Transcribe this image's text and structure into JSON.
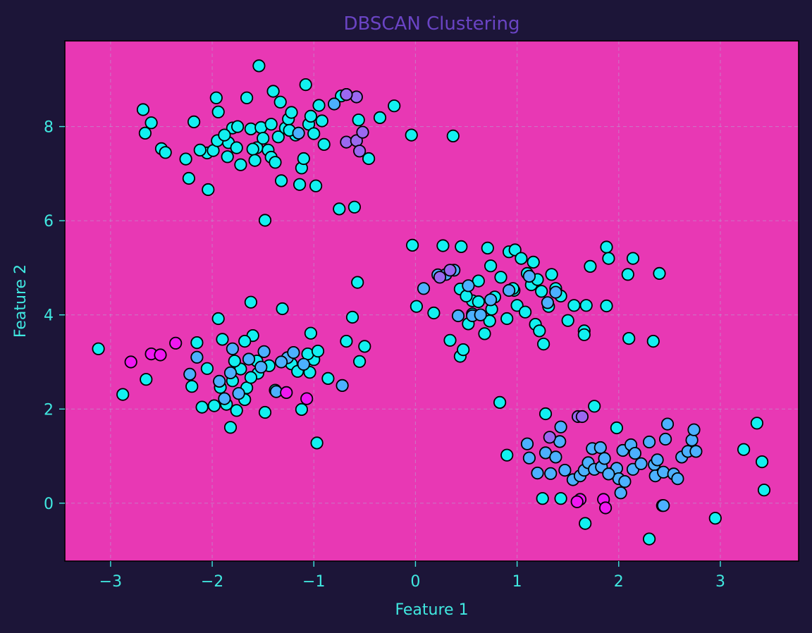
{
  "chart_data": {
    "type": "scatter",
    "title": "DBSCAN Clustering",
    "xlabel": "Feature 1",
    "ylabel": "Feature 2",
    "xlim": [
      -3.45,
      3.77
    ],
    "ylim": [
      -1.23,
      9.82
    ],
    "xticks": [
      -3,
      -2,
      -1,
      0,
      1,
      2,
      3
    ],
    "yticks": [
      0,
      2,
      4,
      6,
      8
    ],
    "grid": true,
    "legend": "none",
    "colors": {
      "background": "#1c1538",
      "plot_area": "#e838b4",
      "text": "#40e8e0",
      "title": "#6a44c4",
      "grid": "#b8a0d0",
      "marker_edge": "#000000"
    },
    "series": [
      {
        "color": "#12f0f0",
        "points": [
          [
            -3.12,
            3.28
          ],
          [
            -2.88,
            2.31
          ],
          [
            -2.65,
            2.63
          ],
          [
            -2.2,
            2.48
          ],
          [
            -2.15,
            3.41
          ],
          [
            -1.94,
            3.92
          ],
          [
            -1.62,
            4.27
          ],
          [
            -1.6,
            3.56
          ],
          [
            -1.31,
            4.13
          ],
          [
            -1.03,
            3.61
          ],
          [
            -1.0,
            3.05
          ],
          [
            -0.97,
            1.28
          ],
          [
            -0.86,
            2.65
          ],
          [
            -0.68,
            3.44
          ],
          [
            -0.62,
            3.95
          ],
          [
            -0.57,
            4.69
          ],
          [
            -0.55,
            3.01
          ],
          [
            -0.5,
            3.33
          ],
          [
            -1.12,
            1.99
          ],
          [
            -1.38,
            2.4
          ],
          [
            -1.48,
            1.93
          ],
          [
            -1.82,
            1.61
          ],
          [
            -1.76,
            1.97
          ],
          [
            -2.1,
            2.04
          ],
          [
            -1.98,
            2.07
          ],
          [
            -1.86,
            2.1
          ],
          [
            -1.68,
            2.2
          ],
          [
            -1.92,
            2.46
          ],
          [
            -1.66,
            2.45
          ],
          [
            -1.8,
            2.6
          ],
          [
            -1.72,
            2.85
          ],
          [
            -1.55,
            2.76
          ],
          [
            -1.44,
            2.92
          ],
          [
            -1.9,
            3.48
          ],
          [
            -1.56,
            3.02
          ],
          [
            -1.22,
            2.96
          ],
          [
            -1.04,
            2.78
          ],
          [
            -1.06,
            3.17
          ],
          [
            -0.96,
            3.23
          ],
          [
            -1.16,
            2.8
          ],
          [
            -1.62,
            2.67
          ],
          [
            -2.05,
            2.86
          ],
          [
            -1.78,
            3.02
          ],
          [
            -1.68,
            3.44
          ],
          [
            -2.68,
            8.36
          ],
          [
            -2.66,
            7.86
          ],
          [
            -2.6,
            8.08
          ],
          [
            -2.5,
            7.53
          ],
          [
            -2.46,
            7.45
          ],
          [
            -2.26,
            7.31
          ],
          [
            -2.23,
            6.9
          ],
          [
            -2.18,
            8.1
          ],
          [
            -2.05,
            7.44
          ],
          [
            -2.04,
            6.66
          ],
          [
            -1.99,
            7.49
          ],
          [
            -1.96,
            8.61
          ],
          [
            -1.94,
            8.31
          ],
          [
            -1.84,
            7.66
          ],
          [
            -1.8,
            7.97
          ],
          [
            -1.76,
            7.55
          ],
          [
            -1.72,
            7.19
          ],
          [
            -1.66,
            8.61
          ],
          [
            -1.62,
            7.95
          ],
          [
            -1.56,
            7.55
          ],
          [
            -1.54,
            9.29
          ],
          [
            -1.52,
            7.98
          ],
          [
            -1.5,
            7.75
          ],
          [
            -1.48,
            6.01
          ],
          [
            -1.45,
            7.5
          ],
          [
            -1.42,
            7.35
          ],
          [
            -1.4,
            8.75
          ],
          [
            -1.38,
            7.24
          ],
          [
            -1.35,
            7.78
          ],
          [
            -1.33,
            8.52
          ],
          [
            -1.32,
            6.85
          ],
          [
            -1.28,
            7.97
          ],
          [
            -1.25,
            8.16
          ],
          [
            -1.22,
            8.3
          ],
          [
            -1.18,
            7.82
          ],
          [
            -1.14,
            6.77
          ],
          [
            -1.12,
            7.12
          ],
          [
            -1.1,
            7.32
          ],
          [
            -1.08,
            8.89
          ],
          [
            -1.05,
            8.05
          ],
          [
            -1.03,
            8.22
          ],
          [
            -1.0,
            7.85
          ],
          [
            -0.98,
            6.74
          ],
          [
            -0.95,
            8.45
          ],
          [
            -0.92,
            8.12
          ],
          [
            -0.9,
            7.62
          ],
          [
            -0.75,
            6.25
          ],
          [
            -0.6,
            6.29
          ],
          [
            -0.56,
            8.14
          ],
          [
            -0.46,
            7.32
          ],
          [
            -0.35,
            8.19
          ],
          [
            -0.21,
            8.44
          ],
          [
            -0.04,
            7.82
          ],
          [
            0.37,
            7.8
          ],
          [
            -0.73,
            8.65
          ],
          [
            -1.6,
            7.52
          ],
          [
            -1.85,
            7.36
          ],
          [
            -1.95,
            7.7
          ],
          [
            -2.12,
            7.5
          ],
          [
            -1.75,
            8.0
          ],
          [
            -1.88,
            7.82
          ],
          [
            -1.58,
            7.28
          ],
          [
            -1.42,
            8.05
          ],
          [
            -1.24,
            7.92
          ],
          [
            -0.03,
            5.48
          ],
          [
            0.01,
            4.18
          ],
          [
            0.18,
            4.04
          ],
          [
            0.27,
            5.47
          ],
          [
            0.34,
            3.46
          ],
          [
            0.44,
            3.12
          ],
          [
            0.45,
            5.45
          ],
          [
            0.47,
            3.26
          ],
          [
            0.52,
            3.81
          ],
          [
            0.56,
            4.3
          ],
          [
            0.62,
            4.72
          ],
          [
            0.68,
            3.6
          ],
          [
            0.71,
            5.42
          ],
          [
            0.73,
            3.87
          ],
          [
            0.74,
            5.04
          ],
          [
            0.75,
            4.12
          ],
          [
            0.78,
            4.38
          ],
          [
            0.84,
            4.8
          ],
          [
            0.9,
            3.92
          ],
          [
            0.92,
            5.34
          ],
          [
            0.97,
            4.52
          ],
          [
            0.98,
            5.38
          ],
          [
            1.0,
            4.2
          ],
          [
            1.04,
            5.2
          ],
          [
            1.08,
            4.06
          ],
          [
            1.1,
            4.88
          ],
          [
            1.14,
            4.64
          ],
          [
            1.16,
            5.12
          ],
          [
            1.18,
            3.8
          ],
          [
            1.2,
            4.75
          ],
          [
            1.22,
            3.66
          ],
          [
            1.24,
            4.5
          ],
          [
            1.26,
            3.38
          ],
          [
            1.31,
            4.18
          ],
          [
            1.34,
            4.86
          ],
          [
            1.38,
            4.56
          ],
          [
            1.43,
            4.4
          ],
          [
            1.5,
            3.88
          ],
          [
            1.56,
            4.2
          ],
          [
            1.66,
            3.66
          ],
          [
            1.68,
            4.2
          ],
          [
            1.72,
            5.03
          ],
          [
            1.88,
            5.44
          ],
          [
            1.9,
            5.2
          ],
          [
            1.88,
            4.19
          ],
          [
            2.09,
            4.86
          ],
          [
            2.1,
            3.5
          ],
          [
            2.14,
            5.2
          ],
          [
            2.34,
            3.44
          ],
          [
            2.4,
            4.88
          ],
          [
            0.44,
            4.55
          ],
          [
            0.56,
            4.02
          ],
          [
            0.62,
            4.28
          ],
          [
            0.5,
            4.4
          ],
          [
            0.96,
            4.56
          ],
          [
            0.83,
            2.14
          ],
          [
            1.66,
            3.58
          ],
          [
            0.9,
            1.02
          ],
          [
            1.28,
            1.9
          ],
          [
            1.43,
            0.1
          ],
          [
            1.67,
            -0.43
          ],
          [
            1.76,
            2.06
          ],
          [
            1.98,
            1.6
          ],
          [
            2.3,
            -0.76
          ],
          [
            2.43,
            -0.05
          ],
          [
            2.95,
            -0.32
          ],
          [
            3.23,
            1.14
          ],
          [
            3.36,
            1.7
          ],
          [
            3.41,
            0.88
          ],
          [
            3.43,
            0.28
          ],
          [
            1.25,
            0.1
          ]
        ]
      },
      {
        "color": "#4cb0ff",
        "points": [
          [
            -2.15,
            3.1
          ],
          [
            -1.93,
            2.59
          ],
          [
            -1.8,
            3.28
          ],
          [
            -1.82,
            2.77
          ],
          [
            -1.49,
            3.22
          ],
          [
            -1.37,
            2.37
          ],
          [
            -1.26,
            3.09
          ],
          [
            -1.1,
            2.95
          ],
          [
            -0.72,
            2.5
          ],
          [
            -1.64,
            3.06
          ],
          [
            -1.52,
            2.89
          ],
          [
            -1.2,
            3.2
          ],
          [
            -1.88,
            2.22
          ],
          [
            -2.22,
            2.74
          ],
          [
            -1.74,
            2.33
          ],
          [
            -1.32,
            3.0
          ],
          [
            -0.68,
            8.68
          ],
          [
            -0.8,
            8.48
          ],
          [
            -1.15,
            7.86
          ],
          [
            0.22,
            4.85
          ],
          [
            0.3,
            4.86
          ],
          [
            0.38,
            4.95
          ],
          [
            0.56,
            3.98
          ],
          [
            0.42,
            3.98
          ],
          [
            0.64,
            4.0
          ],
          [
            0.92,
            4.52
          ],
          [
            1.12,
            4.82
          ],
          [
            1.3,
            4.26
          ],
          [
            1.38,
            4.48
          ],
          [
            0.08,
            4.56
          ],
          [
            0.52,
            4.62
          ],
          [
            0.74,
            4.32
          ],
          [
            1.1,
            1.26
          ],
          [
            1.12,
            0.96
          ],
          [
            1.2,
            0.64
          ],
          [
            1.28,
            1.07
          ],
          [
            1.33,
            0.63
          ],
          [
            1.38,
            0.98
          ],
          [
            1.42,
            1.31
          ],
          [
            1.47,
            0.7
          ],
          [
            1.55,
            0.5
          ],
          [
            1.62,
            0.58
          ],
          [
            1.66,
            0.7
          ],
          [
            1.7,
            0.86
          ],
          [
            1.74,
            1.16
          ],
          [
            1.76,
            0.72
          ],
          [
            1.82,
            1.18
          ],
          [
            1.83,
            0.77
          ],
          [
            1.86,
            0.95
          ],
          [
            1.94,
            0.64
          ],
          [
            1.98,
            0.74
          ],
          [
            2.0,
            0.52
          ],
          [
            2.02,
            0.22
          ],
          [
            2.04,
            1.12
          ],
          [
            2.06,
            0.46
          ],
          [
            2.12,
            1.24
          ],
          [
            2.14,
            0.72
          ],
          [
            2.16,
            1.06
          ],
          [
            2.22,
            0.84
          ],
          [
            2.3,
            1.3
          ],
          [
            2.35,
            0.82
          ],
          [
            2.36,
            0.58
          ],
          [
            2.38,
            0.92
          ],
          [
            2.44,
            0.66
          ],
          [
            2.46,
            1.36
          ],
          [
            2.48,
            1.68
          ],
          [
            2.54,
            0.62
          ],
          [
            2.58,
            0.52
          ],
          [
            2.62,
            0.98
          ],
          [
            2.68,
            1.1
          ],
          [
            2.72,
            1.34
          ],
          [
            2.74,
            1.56
          ],
          [
            2.76,
            1.1
          ],
          [
            2.44,
            -0.05
          ],
          [
            1.43,
            1.62
          ],
          [
            1.9,
            0.62
          ]
        ]
      },
      {
        "color": "#9a68f0",
        "points": [
          [
            -0.68,
            7.67
          ],
          [
            -0.58,
            7.7
          ],
          [
            -0.52,
            7.88
          ],
          [
            -0.55,
            7.48
          ],
          [
            -0.58,
            8.63
          ],
          [
            -0.68,
            8.68
          ],
          [
            0.34,
            4.95
          ],
          [
            0.24,
            4.8
          ],
          [
            1.32,
            1.4
          ],
          [
            1.6,
            1.84
          ],
          [
            1.64,
            1.84
          ]
        ]
      },
      {
        "color": "#f018f0",
        "points": [
          [
            -2.8,
            3.0
          ],
          [
            -2.6,
            3.17
          ],
          [
            -2.51,
            3.15
          ],
          [
            -2.36,
            3.4
          ],
          [
            -1.27,
            2.35
          ],
          [
            -1.07,
            2.22
          ],
          [
            1.62,
            0.08
          ],
          [
            1.85,
            0.08
          ],
          [
            1.87,
            -0.1
          ],
          [
            1.59,
            0.03
          ]
        ]
      }
    ]
  }
}
